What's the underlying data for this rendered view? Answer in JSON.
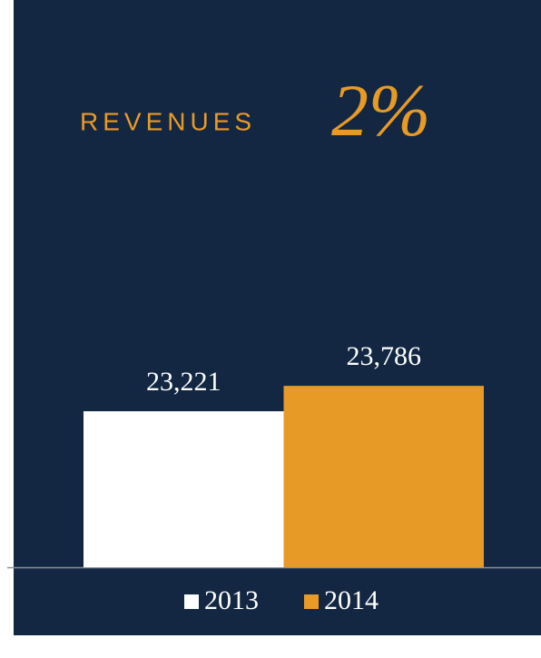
{
  "chart_data": {
    "type": "bar",
    "title": "REVENUES",
    "headline": "2%",
    "categories": [
      null
    ],
    "series": [
      {
        "name": "2013",
        "color": "#ffffff",
        "values": [
          23221
        ],
        "value_labels": [
          "23,221"
        ]
      },
      {
        "name": "2014",
        "color": "#e89a26",
        "values": [
          23786
        ],
        "value_labels": [
          "23,786"
        ]
      }
    ],
    "ylim": [
      19750,
      27000
    ]
  }
}
